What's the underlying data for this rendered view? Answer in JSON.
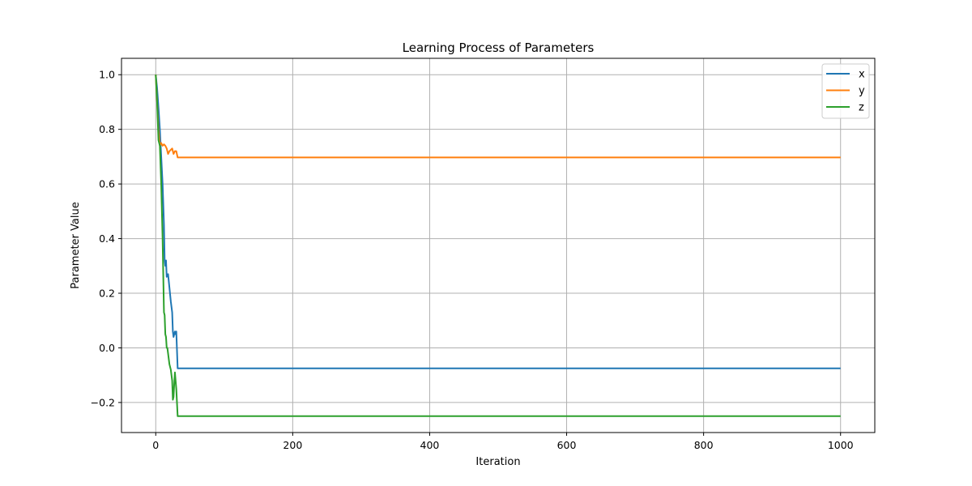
{
  "chart_data": {
    "type": "line",
    "title": "Learning Process of Parameters",
    "xlabel": "Iteration",
    "ylabel": "Parameter Value",
    "xlim": [
      -50,
      1050
    ],
    "ylim": [
      -0.31,
      1.06
    ],
    "xticks": [
      0,
      200,
      400,
      600,
      800,
      1000
    ],
    "yticks": [
      -0.2,
      0.0,
      0.2,
      0.4,
      0.6,
      0.8,
      1.0
    ],
    "grid": true,
    "legend": "top-right",
    "series": [
      {
        "name": "x",
        "color": "#1f77b4",
        "points": [
          [
            0,
            1.0
          ],
          [
            2,
            0.95
          ],
          [
            4,
            0.88
          ],
          [
            6,
            0.8
          ],
          [
            8,
            0.7
          ],
          [
            10,
            0.6
          ],
          [
            12,
            0.45
          ],
          [
            13,
            0.32
          ],
          [
            14,
            0.3
          ],
          [
            15,
            0.32
          ],
          [
            16,
            0.26
          ],
          [
            18,
            0.27
          ],
          [
            20,
            0.22
          ],
          [
            22,
            0.17
          ],
          [
            24,
            0.13
          ],
          [
            25,
            0.06
          ],
          [
            26,
            0.04
          ],
          [
            27,
            0.05
          ],
          [
            28,
            0.06
          ],
          [
            29,
            0.05
          ],
          [
            30,
            0.06
          ],
          [
            32,
            -0.075
          ],
          [
            1000,
            -0.075
          ]
        ]
      },
      {
        "name": "y",
        "color": "#ff7f0e",
        "points": [
          [
            0,
            1.0
          ],
          [
            2,
            0.9
          ],
          [
            4,
            0.8
          ],
          [
            6,
            0.74
          ],
          [
            8,
            0.75
          ],
          [
            10,
            0.74
          ],
          [
            12,
            0.745
          ],
          [
            14,
            0.74
          ],
          [
            16,
            0.73
          ],
          [
            18,
            0.71
          ],
          [
            20,
            0.72
          ],
          [
            22,
            0.725
          ],
          [
            24,
            0.73
          ],
          [
            26,
            0.71
          ],
          [
            28,
            0.72
          ],
          [
            30,
            0.72
          ],
          [
            32,
            0.697
          ],
          [
            1000,
            0.697
          ]
        ]
      },
      {
        "name": "z",
        "color": "#2ca02c",
        "points": [
          [
            0,
            1.0
          ],
          [
            2,
            0.9
          ],
          [
            4,
            0.76
          ],
          [
            6,
            0.74
          ],
          [
            8,
            0.6
          ],
          [
            10,
            0.4
          ],
          [
            12,
            0.13
          ],
          [
            13,
            0.12
          ],
          [
            14,
            0.05
          ],
          [
            15,
            0.04
          ],
          [
            16,
            0.0
          ],
          [
            17,
            0.0
          ],
          [
            18,
            -0.02
          ],
          [
            20,
            -0.06
          ],
          [
            22,
            -0.08
          ],
          [
            24,
            -0.12
          ],
          [
            25,
            -0.19
          ],
          [
            26,
            -0.18
          ],
          [
            27,
            -0.13
          ],
          [
            28,
            -0.09
          ],
          [
            29,
            -0.12
          ],
          [
            30,
            -0.15
          ],
          [
            32,
            -0.25
          ],
          [
            1000,
            -0.25
          ]
        ]
      }
    ]
  }
}
